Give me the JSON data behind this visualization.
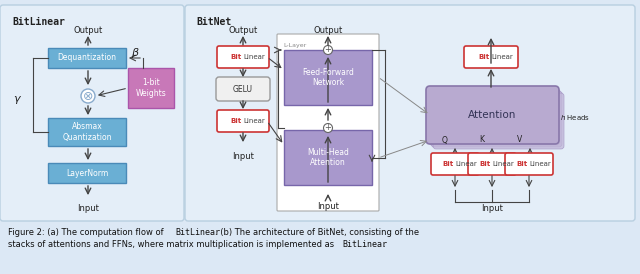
{
  "bg_color": "#dce8f5",
  "panel_bg": "#e4eef8",
  "box_blue": "#6aafd4",
  "box_pink": "#c878b8",
  "box_purple": "#a898cc",
  "text_dark": "#222222",
  "text_white": "#ffffff",
  "text_gray": "#666666",
  "arrow_color": "#444444",
  "caption_line1": "Figure 2: (a) The computation flow of ",
  "caption_line1b": "BitLinear",
  "caption_line1c": ". (b) The architecture of BitNet, consisting of the",
  "caption_line2": "stacks of attentions and FFNs, where matrix multiplication is implemented as ",
  "caption_line2b": "BitLinear",
  "caption_line2c": ".",
  "title_bitlinear": "BitLinear",
  "title_bitnet": "BitNet"
}
